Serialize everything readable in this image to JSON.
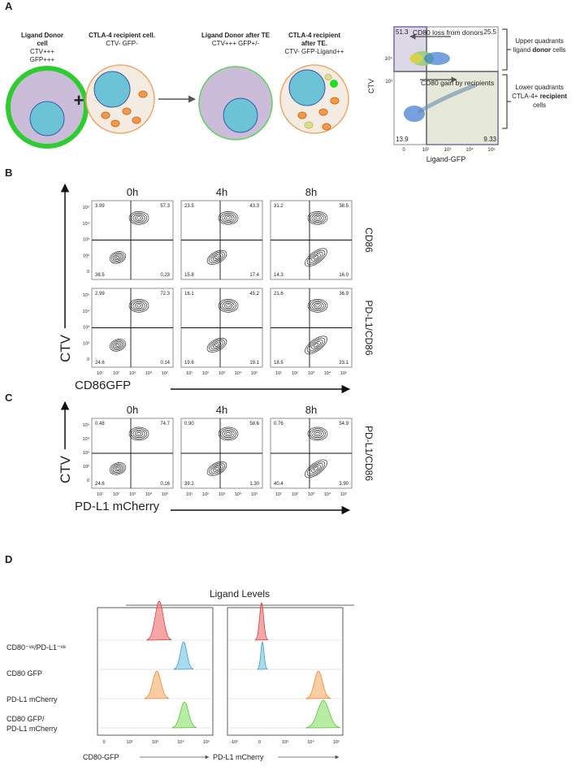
{
  "panel_a": {
    "label": "A",
    "cells": [
      {
        "title": [
          "Ligand Donor",
          "cell"
        ],
        "sub": [
          "CTV+++",
          "GFP+++"
        ]
      },
      {
        "title": [
          "CTLA-4 recipient cell."
        ],
        "sub": [
          "CTV- GFP-"
        ]
      },
      {
        "title": [
          "Ligand Donor after TE"
        ],
        "sub": [
          "CTV+++ GFP+/-"
        ]
      },
      {
        "title": [
          "CTLA-4 recipient",
          "after TE."
        ],
        "sub": [
          "CTV- GFP-Ligand++"
        ]
      }
    ],
    "plus": "+",
    "flow": {
      "quadrants": [
        "51.3",
        "25.5",
        "13.9",
        "9.33"
      ],
      "annotations": [
        "CD80 loss from donors",
        "CD80 gain by recipients"
      ],
      "ylabel": "CTV",
      "xlabel": "Ligand-GFP",
      "yticks": [
        "10⁴",
        "10³"
      ],
      "xticks": [
        "0",
        "10²",
        "10³",
        "10⁴",
        "10⁵"
      ]
    },
    "notes": [
      [
        [
          "Upper quadrants"
        ],
        [
          "ligand ",
          "donor",
          " cells"
        ]
      ],
      [
        [
          "Lower quadrants"
        ],
        [
          "CTLA-4+ ",
          "recipient"
        ],
        [
          "cells"
        ]
      ]
    ]
  },
  "panel_b": {
    "label": "B",
    "times": [
      "0h",
      "4h",
      "8h"
    ],
    "rows": [
      {
        "name": "CD86",
        "quadrants": [
          [
            "3.99",
            "57.3",
            "38.5",
            "0.23"
          ],
          [
            "23.5",
            "43.3",
            "15.8",
            "17.4"
          ],
          [
            "31.2",
            "38.5",
            "14.3",
            "16.0"
          ]
        ]
      },
      {
        "name": "PD-L1/CD86",
        "quadrants": [
          [
            "2.99",
            "72.3",
            "24.6",
            "0.14"
          ],
          [
            "16.1",
            "45.2",
            "19.6",
            "19.1"
          ],
          [
            "21.6",
            "36.9",
            "18.5",
            "23.1"
          ]
        ]
      }
    ],
    "ylabel": "CTV",
    "xlabel": "CD86GFP",
    "yticks": [
      "10⁵",
      "10⁴",
      "10³",
      "10²",
      "0"
    ],
    "xticks": [
      "10¹",
      "10²",
      "10³",
      "10⁴",
      "10⁵"
    ]
  },
  "panel_c": {
    "label": "C",
    "times": [
      "0h",
      "4h",
      "8h"
    ],
    "rows": [
      {
        "name": "PD-L1/CD86",
        "quadrants": [
          [
            "0.48",
            "74.7",
            "24.6",
            "0.16"
          ],
          [
            "0.90",
            "58.6",
            "39.2",
            "1.30"
          ],
          [
            "0.76",
            "54.9",
            "40.4",
            "3.90"
          ]
        ]
      }
    ],
    "ylabel": "CTV",
    "xlabel": "PD-L1 mCherry",
    "yticks": [
      "10⁵",
      "10⁴",
      "10³",
      "10²",
      "0"
    ],
    "xticks": [
      "10¹",
      "10²",
      "10³",
      "10⁴",
      "10⁵"
    ]
  },
  "panel_d": {
    "label": "D",
    "title": "Ligand Levels",
    "rows": [
      [
        "CD80⁻ᵛᵉ/PD-L1⁻ᵛᵉ"
      ],
      [
        "CD80 GFP"
      ],
      [
        "PD-L1 mCherry"
      ],
      [
        "CD80 GFP/",
        "PD-L1 mCherry"
      ]
    ],
    "xlabels": [
      "CD80-GFP",
      "PD-L1 mCherry"
    ],
    "xticks": [
      [
        "0",
        "10²",
        "10³",
        "10⁴",
        "10⁵"
      ],
      [
        "-10³",
        "0",
        "10³",
        "10⁴",
        "10⁵"
      ]
    ]
  }
}
